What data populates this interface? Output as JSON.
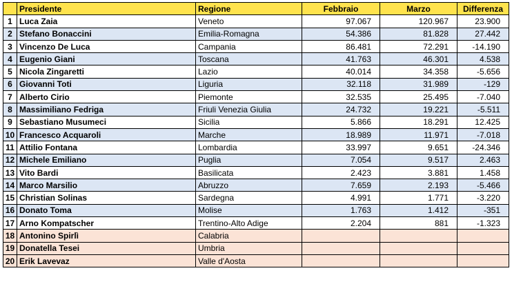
{
  "header": {
    "num": "",
    "presidente": "Presidente",
    "regione": "Regione",
    "febbraio": "Febbraio",
    "marzo": "Marzo",
    "differenza": "Differenza"
  },
  "rows": [
    {
      "n": "1",
      "presidente": "Luca Zaia",
      "regione": "Veneto",
      "febbraio": "97.067",
      "marzo": "120.967",
      "differenza": "23.900"
    },
    {
      "n": "2",
      "presidente": "Stefano Bonaccini",
      "regione": "Emilia-Romagna",
      "febbraio": "54.386",
      "marzo": "81.828",
      "differenza": "27.442"
    },
    {
      "n": "3",
      "presidente": "Vincenzo De Luca",
      "regione": "Campania",
      "febbraio": "86.481",
      "marzo": "72.291",
      "differenza": "-14.190"
    },
    {
      "n": "4",
      "presidente": "Eugenio Giani",
      "regione": "Toscana",
      "febbraio": "41.763",
      "marzo": "46.301",
      "differenza": "4.538"
    },
    {
      "n": "5",
      "presidente": "Nicola Zingaretti",
      "regione": "Lazio",
      "febbraio": "40.014",
      "marzo": "34.358",
      "differenza": "-5.656"
    },
    {
      "n": "6",
      "presidente": "Giovanni Toti",
      "regione": "Liguria",
      "febbraio": "32.118",
      "marzo": "31.989",
      "differenza": "-129"
    },
    {
      "n": "7",
      "presidente": "Alberto Cirio",
      "regione": "Piemonte",
      "febbraio": "32.535",
      "marzo": "25.495",
      "differenza": "-7.040"
    },
    {
      "n": "8",
      "presidente": "Massimiliano Fedriga",
      "regione": "Friuli Venezia Giulia",
      "febbraio": "24.732",
      "marzo": "19.221",
      "differenza": "-5.511"
    },
    {
      "n": "9",
      "presidente": "Sebastiano Musumeci",
      "regione": "Sicilia",
      "febbraio": "5.866",
      "marzo": "18.291",
      "differenza": "12.425"
    },
    {
      "n": "10",
      "presidente": "Francesco Acquaroli",
      "regione": "Marche",
      "febbraio": "18.989",
      "marzo": "11.971",
      "differenza": "-7.018"
    },
    {
      "n": "11",
      "presidente": "Attilio Fontana",
      "regione": "Lombardia",
      "febbraio": "33.997",
      "marzo": "9.651",
      "differenza": "-24.346"
    },
    {
      "n": "12",
      "presidente": "Michele Emiliano",
      "regione": "Puglia",
      "febbraio": "7.054",
      "marzo": "9.517",
      "differenza": "2.463"
    },
    {
      "n": "13",
      "presidente": "Vito Bardi",
      "regione": "Basilicata",
      "febbraio": "2.423",
      "marzo": "3.881",
      "differenza": "1.458"
    },
    {
      "n": "14",
      "presidente": "Marco Marsilio",
      "regione": "Abruzzo",
      "febbraio": "7.659",
      "marzo": "2.193",
      "differenza": "-5.466"
    },
    {
      "n": "15",
      "presidente": "Christian Solinas",
      "regione": "Sardegna",
      "febbraio": "4.991",
      "marzo": "1.771",
      "differenza": "-3.220"
    },
    {
      "n": "16",
      "presidente": "Donato Toma",
      "regione": "Molise",
      "febbraio": "1.763",
      "marzo": "1.412",
      "differenza": "-351"
    },
    {
      "n": "17",
      "presidente": "Arno Kompatscher",
      "regione": "Trentino-Alto Adige",
      "febbraio": "2.204",
      "marzo": "881",
      "differenza": "-1.323"
    },
    {
      "n": "18",
      "presidente": "Antonino Spirlì",
      "regione": "Calabria",
      "febbraio": "",
      "marzo": "",
      "differenza": ""
    },
    {
      "n": "19",
      "presidente": "Donatella Tesei",
      "regione": "Umbria",
      "febbraio": "",
      "marzo": "",
      "differenza": ""
    },
    {
      "n": "20",
      "presidente": "Erik Lavevaz",
      "regione": "Valle d'Aosta",
      "febbraio": "",
      "marzo": "",
      "differenza": ""
    }
  ],
  "colors": {
    "header": "#ffe34d",
    "row_alt": "#dce6f4",
    "row_plain": "#ffffff",
    "row_missing": "#fbe3d6"
  }
}
